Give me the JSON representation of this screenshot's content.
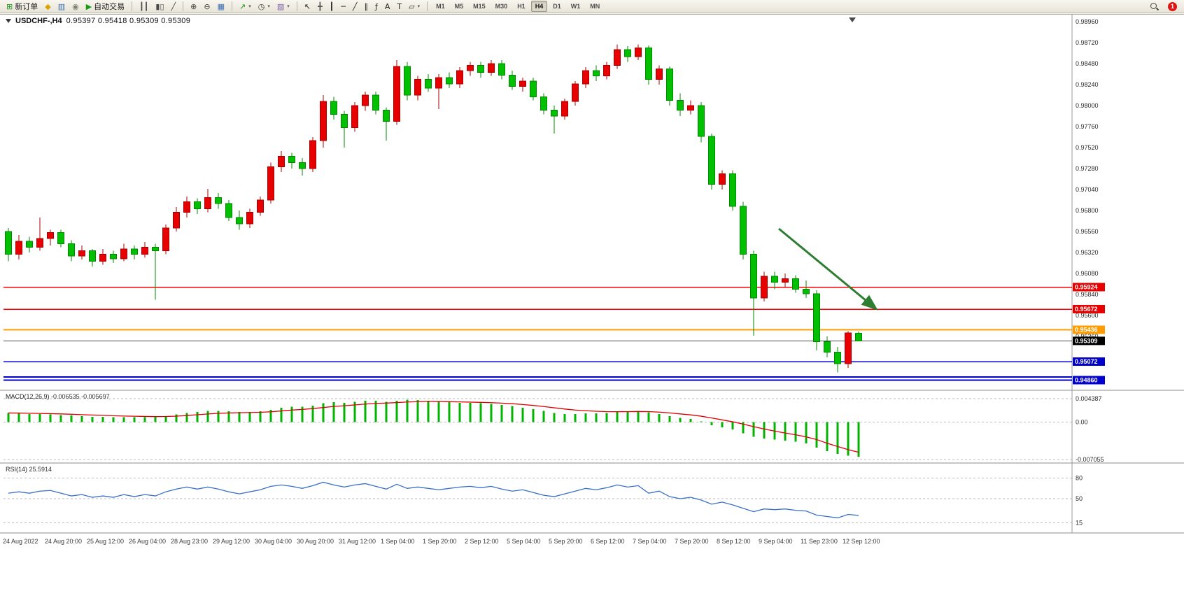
{
  "window": {
    "symbol_period": "USDCHF-,H4",
    "ohlc": "0.95397 0.95418 0.95309 0.95309"
  },
  "toolbar": {
    "notification_count": "1",
    "active_timeframe": "H4",
    "timeframes": [
      "M1",
      "M5",
      "M15",
      "M30",
      "H1",
      "H4",
      "D1",
      "W1",
      "MN"
    ],
    "items": [
      {
        "type": "button",
        "name": "new-order-button",
        "glyph": "⊞",
        "glyph_color": "#1a9a1a",
        "label": "新订单"
      },
      {
        "type": "button",
        "name": "metaeditor-button",
        "glyph": "◆",
        "glyph_color": "#d9a300"
      },
      {
        "type": "button",
        "name": "market-watch-button",
        "glyph": "▥",
        "glyph_color": "#3a6fb5"
      },
      {
        "type": "button",
        "name": "strategy-tester-button",
        "glyph": "◉",
        "glyph_color": "#7d8271"
      },
      {
        "type": "button",
        "name": "autotrading-button",
        "glyph": "▶",
        "glyph_color": "#12a012",
        "label": "自动交易"
      },
      {
        "type": "sep"
      },
      {
        "type": "button",
        "name": "bar-chart-button",
        "glyph": "┃┃",
        "glyph_color": "#4a4a4a"
      },
      {
        "type": "button",
        "name": "candlestick-chart-button",
        "glyph": "▮▯",
        "glyph_color": "#4a4a4a"
      },
      {
        "type": "button",
        "name": "line-chart-button",
        "glyph": "╱",
        "glyph_color": "#4a4a4a"
      },
      {
        "type": "sep"
      },
      {
        "type": "button",
        "name": "zoom-in-button",
        "glyph": "⊕",
        "glyph_color": "#444444"
      },
      {
        "type": "button",
        "name": "zoom-out-button",
        "glyph": "⊖",
        "glyph_color": "#444444"
      },
      {
        "type": "button",
        "name": "tile-windows-button",
        "glyph": "▦",
        "glyph_color": "#3a6fb5"
      },
      {
        "type": "sep"
      },
      {
        "type": "button",
        "name": "indicators-button",
        "glyph": "↗",
        "glyph_color": "#1a9a1a",
        "dropdown": true
      },
      {
        "type": "button",
        "name": "periods-button",
        "glyph": "◷",
        "glyph_color": "#444444",
        "dropdown": true
      },
      {
        "type": "button",
        "name": "templates-button",
        "glyph": "▧",
        "glyph_color": "#7a5fa8",
        "dropdown": true
      },
      {
        "type": "sep"
      },
      {
        "type": "button",
        "name": "cursor-button",
        "glyph": "↖",
        "glyph_color": "#222222"
      },
      {
        "type": "button",
        "name": "crosshair-button",
        "glyph": "╋",
        "glyph_color": "#555555"
      },
      {
        "type": "button",
        "name": "vertical-line-button",
        "glyph": "┃",
        "glyph_color": "#222222"
      },
      {
        "type": "button",
        "name": "horizontal-line-button",
        "glyph": "─",
        "glyph_color": "#222222"
      },
      {
        "type": "button",
        "name": "trendline-button",
        "glyph": "╱",
        "glyph_color": "#222222"
      },
      {
        "type": "button",
        "name": "channel-button",
        "glyph": "∥",
        "glyph_color": "#222222"
      },
      {
        "type": "button",
        "name": "fibonacci-button",
        "glyph": "ƒ",
        "glyph_color": "#222222"
      },
      {
        "type": "button",
        "name": "text-button",
        "glyph": "A",
        "glyph_color": "#222222"
      },
      {
        "type": "button",
        "name": "label-button",
        "glyph": "T",
        "glyph_color": "#222222"
      },
      {
        "type": "button",
        "name": "shapes-button",
        "glyph": "▱",
        "glyph_color": "#222222",
        "dropdown": true
      },
      {
        "type": "sep"
      },
      {
        "type": "tf-group"
      }
    ]
  },
  "chart_data": {
    "type": "candlestick",
    "symbol": "USDCHF-",
    "period": "H4",
    "last_ohlc": {
      "open": 0.95397,
      "high": 0.95418,
      "low": 0.95309,
      "close": 0.95309
    },
    "colors": {
      "up": "#e80000",
      "up_border": "#a80000",
      "down": "#00c000",
      "down_border": "#008800"
    },
    "price_axis": {
      "max_visible": 0.99032,
      "min_visible": 0.94744,
      "ticks": [
        "0.98960",
        "0.98720",
        "0.98480",
        "0.98240",
        "0.98000",
        "0.97760",
        "0.97520",
        "0.97280",
        "0.97040",
        "0.96800",
        "0.96560",
        "0.96320",
        "0.96080",
        "0.95840",
        "0.95600",
        "0.95360"
      ]
    },
    "candles": [
      [
        0.9656,
        0.966,
        0.9622,
        0.963
      ],
      [
        0.963,
        0.9652,
        0.9624,
        0.9645
      ],
      [
        0.9645,
        0.965,
        0.9632,
        0.9638
      ],
      [
        0.9638,
        0.9672,
        0.9634,
        0.9648
      ],
      [
        0.9648,
        0.9658,
        0.964,
        0.9655
      ],
      [
        0.9655,
        0.9658,
        0.9638,
        0.9642
      ],
      [
        0.9642,
        0.9646,
        0.9622,
        0.9628
      ],
      [
        0.9628,
        0.964,
        0.9624,
        0.9634
      ],
      [
        0.9634,
        0.9636,
        0.9616,
        0.9622
      ],
      [
        0.9622,
        0.9636,
        0.9618,
        0.963
      ],
      [
        0.963,
        0.9634,
        0.962,
        0.9625
      ],
      [
        0.9625,
        0.9642,
        0.9622,
        0.9636
      ],
      [
        0.9636,
        0.964,
        0.9624,
        0.963
      ],
      [
        0.963,
        0.9644,
        0.9626,
        0.9638
      ],
      [
        0.9638,
        0.9642,
        0.9578,
        0.9634
      ],
      [
        0.9634,
        0.9664,
        0.963,
        0.966
      ],
      [
        0.966,
        0.9684,
        0.9656,
        0.9678
      ],
      [
        0.9678,
        0.9696,
        0.9672,
        0.969
      ],
      [
        0.969,
        0.9694,
        0.9676,
        0.9682
      ],
      [
        0.9682,
        0.9705,
        0.9678,
        0.9695
      ],
      [
        0.9695,
        0.97,
        0.9682,
        0.9688
      ],
      [
        0.9688,
        0.9692,
        0.9668,
        0.9672
      ],
      [
        0.9672,
        0.968,
        0.9658,
        0.9665
      ],
      [
        0.9665,
        0.9682,
        0.966,
        0.9678
      ],
      [
        0.9678,
        0.9696,
        0.9674,
        0.9692
      ],
      [
        0.9692,
        0.9735,
        0.9688,
        0.973
      ],
      [
        0.973,
        0.9748,
        0.9724,
        0.9742
      ],
      [
        0.9742,
        0.9746,
        0.9728,
        0.9735
      ],
      [
        0.9735,
        0.974,
        0.972,
        0.9728
      ],
      [
        0.9728,
        0.9764,
        0.9724,
        0.976
      ],
      [
        0.976,
        0.9812,
        0.9752,
        0.9805
      ],
      [
        0.9805,
        0.981,
        0.9784,
        0.979
      ],
      [
        0.979,
        0.9794,
        0.9752,
        0.9775
      ],
      [
        0.9775,
        0.9804,
        0.977,
        0.98
      ],
      [
        0.98,
        0.9816,
        0.9794,
        0.9812
      ],
      [
        0.9812,
        0.9816,
        0.979,
        0.9795
      ],
      [
        0.9795,
        0.9798,
        0.976,
        0.9782
      ],
      [
        0.9782,
        0.9852,
        0.9778,
        0.9845
      ],
      [
        0.9845,
        0.985,
        0.9806,
        0.9812
      ],
      [
        0.9812,
        0.9834,
        0.9806,
        0.983
      ],
      [
        0.983,
        0.9836,
        0.9816,
        0.982
      ],
      [
        0.982,
        0.9836,
        0.9796,
        0.9832
      ],
      [
        0.9832,
        0.9838,
        0.982,
        0.9825
      ],
      [
        0.9825,
        0.9844,
        0.982,
        0.984
      ],
      [
        0.984,
        0.985,
        0.9834,
        0.9846
      ],
      [
        0.9846,
        0.985,
        0.9832,
        0.9838
      ],
      [
        0.9838,
        0.9852,
        0.9834,
        0.9848
      ],
      [
        0.9848,
        0.9852,
        0.983,
        0.9835
      ],
      [
        0.9835,
        0.984,
        0.9818,
        0.9822
      ],
      [
        0.9822,
        0.9832,
        0.9816,
        0.9828
      ],
      [
        0.9828,
        0.9832,
        0.9806,
        0.981
      ],
      [
        0.981,
        0.9814,
        0.979,
        0.9795
      ],
      [
        0.9795,
        0.98,
        0.9768,
        0.9788
      ],
      [
        0.9788,
        0.9808,
        0.9784,
        0.9805
      ],
      [
        0.9805,
        0.9828,
        0.98,
        0.9825
      ],
      [
        0.9825,
        0.9844,
        0.982,
        0.984
      ],
      [
        0.984,
        0.9846,
        0.9828,
        0.9834
      ],
      [
        0.9834,
        0.985,
        0.983,
        0.9846
      ],
      [
        0.9846,
        0.987,
        0.9842,
        0.9864
      ],
      [
        0.9864,
        0.9868,
        0.985,
        0.9856
      ],
      [
        0.9856,
        0.987,
        0.9852,
        0.9866
      ],
      [
        0.9866,
        0.9869,
        0.9824,
        0.983
      ],
      [
        0.983,
        0.9846,
        0.9824,
        0.9842
      ],
      [
        0.9842,
        0.9845,
        0.98,
        0.9806
      ],
      [
        0.9806,
        0.9814,
        0.9788,
        0.9795
      ],
      [
        0.9795,
        0.9806,
        0.979,
        0.98
      ],
      [
        0.98,
        0.9804,
        0.9758,
        0.9765
      ],
      [
        0.9765,
        0.9768,
        0.9704,
        0.971
      ],
      [
        0.971,
        0.9726,
        0.9704,
        0.9722
      ],
      [
        0.9722,
        0.9726,
        0.968,
        0.9685
      ],
      [
        0.9685,
        0.969,
        0.9624,
        0.963
      ],
      [
        0.963,
        0.9634,
        0.9537,
        0.958
      ],
      [
        0.958,
        0.961,
        0.9576,
        0.9605
      ],
      [
        0.9605,
        0.961,
        0.959,
        0.9598
      ],
      [
        0.9598,
        0.9608,
        0.9592,
        0.9602
      ],
      [
        0.9602,
        0.9606,
        0.9586,
        0.959
      ],
      [
        0.959,
        0.96,
        0.958,
        0.9585
      ],
      [
        0.9585,
        0.9589,
        0.952,
        0.953
      ],
      [
        0.953,
        0.9536,
        0.9512,
        0.9518
      ],
      [
        0.9518,
        0.9524,
        0.9495,
        0.9505
      ],
      [
        0.9505,
        0.9542,
        0.95,
        0.954
      ],
      [
        0.95397,
        0.95418,
        0.95309,
        0.95309
      ]
    ],
    "time_labels": [
      "24 Aug 2022",
      "24 Aug 20:00",
      "25 Aug 12:00",
      "26 Aug 04:00",
      "28 Aug 23:00",
      "29 Aug 12:00",
      "30 Aug 04:00",
      "30 Aug 20:00",
      "31 Aug 12:00",
      "1 Sep 04:00",
      "1 Sep 20:00",
      "2 Sep 12:00",
      "5 Sep 04:00",
      "5 Sep 20:00",
      "6 Sep 12:00",
      "7 Sep 04:00",
      "7 Sep 20:00",
      "8 Sep 12:00",
      "9 Sep 04:00",
      "11 Sep 23:00",
      "12 Sep 12:00"
    ],
    "hlines": [
      {
        "price": 0.95924,
        "label": "0.95924",
        "color": "#ff0000",
        "width": 1.5,
        "flag": true,
        "flag_color": "#e80000"
      },
      {
        "price": 0.95672,
        "label": "0.95672",
        "color": "#ff0000",
        "width": 1.5,
        "flag": true,
        "flag_color": "#e80000"
      },
      {
        "price": 0.95436,
        "label": "0.95436",
        "color": "#ff9d00",
        "width": 2,
        "flag": true,
        "flag_color": "#ff9d00"
      },
      {
        "price": 0.95309,
        "label": "0.95309",
        "color": "#4a4a4a",
        "width": 1,
        "flag": true,
        "flag_color": "#000000"
      },
      {
        "price": 0.95072,
        "label": "0.95072",
        "color": "#0000cc",
        "width": 1.5,
        "flag": true,
        "flag_color": "#0000cc"
      },
      {
        "price": 0.94898,
        "label": "0.94898",
        "color": "#0000cc",
        "width": 2,
        "flag": false,
        "flag_color": "#0000cc"
      },
      {
        "price": 0.9486,
        "label": "0.94860",
        "color": "#0000cc",
        "width": 2,
        "flag": true,
        "flag_color": "#0000cc"
      }
    ],
    "arrow": {
      "bar_from": 73.4,
      "price_from": 0.96592,
      "bar_to": 82.7,
      "price_to": 0.95672,
      "color": "#2e7d32"
    },
    "shift_marker_bar": 80.4,
    "macd": {
      "label": "MACD(12,26,9)",
      "value_text": "-0.006535",
      "signal_text": "-0.005697",
      "axis_max": 0.004387,
      "axis_min": -0.007055,
      "axis_labels": [
        "0.004387",
        "0.00",
        "-0.007055"
      ],
      "axis_values": [
        0.004387,
        0,
        -0.007055
      ],
      "hist_color": "#00b400",
      "signal_color": "#e00000",
      "hist": [
        0.0017,
        0.0016,
        0.0015,
        0.0015,
        0.0014,
        0.0013,
        0.0012,
        0.0011,
        0.001,
        0.001,
        0.0009,
        0.0009,
        0.0009,
        0.0009,
        0.0009,
        0.0011,
        0.0014,
        0.0017,
        0.0019,
        0.0021,
        0.0021,
        0.002,
        0.0019,
        0.0019,
        0.002,
        0.0023,
        0.0027,
        0.0029,
        0.0029,
        0.0031,
        0.0035,
        0.0037,
        0.0036,
        0.0038,
        0.004,
        0.004,
        0.0038,
        0.004,
        0.0042,
        0.0041,
        0.004,
        0.0038,
        0.0037,
        0.0036,
        0.0036,
        0.0035,
        0.0034,
        0.0032,
        0.003,
        0.0027,
        0.0024,
        0.0021,
        0.0017,
        0.0015,
        0.0015,
        0.0016,
        0.0016,
        0.0017,
        0.0019,
        0.002,
        0.0021,
        0.0018,
        0.0015,
        0.0011,
        0.0008,
        0.0006,
        0.0001,
        -0.0006,
        -0.001,
        -0.0014,
        -0.0021,
        -0.0028,
        -0.0031,
        -0.0033,
        -0.0035,
        -0.0037,
        -0.004,
        -0.0048,
        -0.0055,
        -0.006,
        -0.0063,
        -0.006535
      ],
      "signal": [
        0.0017,
        0.00168,
        0.00164,
        0.00161,
        0.00157,
        0.00152,
        0.00145,
        0.00138,
        0.00131,
        0.00125,
        0.00118,
        0.00112,
        0.00108,
        0.00104,
        0.00101,
        0.00103,
        0.0011,
        0.00122,
        0.00136,
        0.00151,
        0.00163,
        0.0017,
        0.00174,
        0.00177,
        0.00182,
        0.00192,
        0.00208,
        0.00224,
        0.00237,
        0.00252,
        0.00272,
        0.00292,
        0.00306,
        0.00321,
        0.00337,
        0.0035,
        0.00356,
        0.00365,
        0.00376,
        0.00383,
        0.00386,
        0.00385,
        0.00382,
        0.00378,
        0.00374,
        0.00369,
        0.00363,
        0.00355,
        0.00344,
        0.00329,
        0.00311,
        0.00291,
        0.00267,
        0.00244,
        0.00225,
        0.00212,
        0.00202,
        0.00195,
        0.00194,
        0.00195,
        0.00198,
        0.00195,
        0.00186,
        0.00171,
        0.00152,
        0.00134,
        0.00109,
        0.00075,
        0.0004,
        4e-05,
        -0.00039,
        -0.00087,
        -0.00132,
        -0.00171,
        -0.00207,
        -0.0024,
        -0.0028,
        -0.0033,
        -0.004,
        -0.0046,
        -0.0052,
        -0.005697
      ]
    },
    "rsi": {
      "label": "RSI(14)",
      "value_text": "25.5914",
      "color": "#3a6fc8",
      "levels": [
        80,
        50,
        15
      ],
      "values": [
        58,
        60,
        58,
        61,
        62,
        58,
        54,
        56,
        52,
        54,
        52,
        56,
        53,
        56,
        54,
        60,
        64,
        67,
        64,
        67,
        64,
        60,
        57,
        60,
        63,
        68,
        70,
        68,
        65,
        69,
        74,
        70,
        67,
        70,
        72,
        68,
        64,
        71,
        65,
        67,
        65,
        63,
        65,
        67,
        68,
        66,
        68,
        64,
        61,
        63,
        59,
        55,
        53,
        57,
        61,
        65,
        63,
        66,
        70,
        67,
        69,
        58,
        61,
        53,
        50,
        52,
        48,
        42,
        45,
        41,
        36,
        31,
        35,
        34,
        35,
        33,
        32,
        26,
        24,
        22,
        27,
        25.59
      ]
    }
  }
}
